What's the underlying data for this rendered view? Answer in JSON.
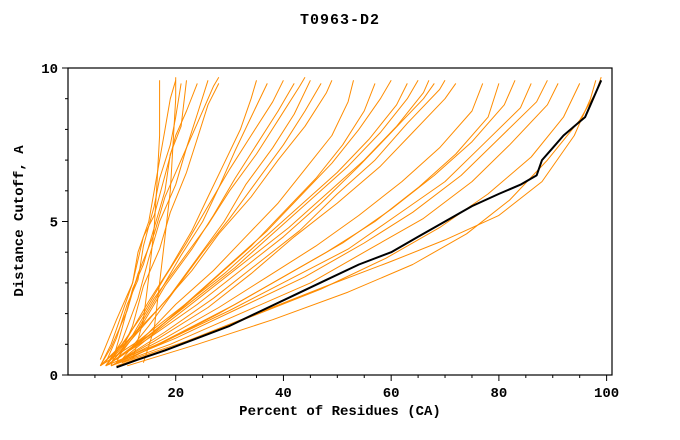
{
  "chart_data": {
    "type": "line",
    "title": "T0963-D2",
    "xlabel": "Percent of Residues (CA)",
    "ylabel": "Distance Cutoff, A",
    "xlim": [
      0,
      101
    ],
    "ylim": [
      0,
      10
    ],
    "x_ticks": [
      20,
      40,
      60,
      80,
      100
    ],
    "x_minor_ticks": [
      5,
      10,
      15,
      25,
      30,
      35,
      45,
      50,
      55,
      65,
      70,
      75,
      85,
      90,
      95
    ],
    "y_ticks": [
      0,
      5,
      10
    ],
    "y_minor_ticks": [
      1,
      2,
      3,
      4,
      6,
      7,
      8,
      9
    ],
    "grid": false,
    "legend": "none",
    "colors": {
      "models": "#ff8c00",
      "reference": "#000000",
      "axis": "#000000",
      "background": "#ffffff"
    },
    "orange_series": [
      [
        [
          6,
          0.3
        ],
        [
          8,
          1
        ],
        [
          10,
          2
        ],
        [
          12,
          3
        ],
        [
          13,
          4
        ],
        [
          15,
          5
        ],
        [
          16,
          6
        ],
        [
          17,
          7
        ],
        [
          18,
          8
        ],
        [
          19,
          9
        ],
        [
          20,
          9.6
        ]
      ],
      [
        [
          7,
          0.4
        ],
        [
          9,
          1.2
        ],
        [
          11,
          2.3
        ],
        [
          13,
          3.1
        ],
        [
          14,
          4.2
        ],
        [
          16,
          5.5
        ],
        [
          17,
          6.4
        ],
        [
          19,
          7.5
        ],
        [
          20,
          8.4
        ],
        [
          21,
          9.5
        ]
      ],
      [
        [
          8,
          0.3
        ],
        [
          10,
          1.5
        ],
        [
          12,
          2.8
        ],
        [
          14,
          3.6
        ],
        [
          16,
          4.8
        ],
        [
          18,
          6
        ],
        [
          19,
          7.2
        ],
        [
          21,
          8.1
        ],
        [
          22,
          9.6
        ]
      ],
      [
        [
          6,
          0.5
        ],
        [
          9,
          1.8
        ],
        [
          12,
          3
        ],
        [
          14,
          4.5
        ],
        [
          16,
          5.2
        ],
        [
          18,
          6.5
        ],
        [
          20,
          7.8
        ],
        [
          22,
          8.6
        ],
        [
          24,
          9.5
        ]
      ],
      [
        [
          7,
          0.3
        ],
        [
          10,
          1.1
        ],
        [
          13,
          2.5
        ],
        [
          15,
          3.8
        ],
        [
          17,
          5
        ],
        [
          20,
          6.2
        ],
        [
          22,
          7.4
        ],
        [
          24,
          8.5
        ],
        [
          26,
          9.6
        ]
      ],
      [
        [
          9,
          0.4
        ],
        [
          12,
          1.6
        ],
        [
          14,
          2.9
        ],
        [
          17,
          4.1
        ],
        [
          19,
          5.3
        ],
        [
          22,
          6.6
        ],
        [
          24,
          7.7
        ],
        [
          26,
          8.8
        ],
        [
          28,
          9.5
        ]
      ],
      [
        [
          6,
          0.3
        ],
        [
          8,
          0.9
        ],
        [
          11,
          2.1
        ],
        [
          13,
          3.3
        ],
        [
          16,
          4.6
        ],
        [
          18,
          5.8
        ],
        [
          21,
          7
        ],
        [
          24,
          8.2
        ],
        [
          27,
          9.4
        ],
        [
          28,
          9.7
        ]
      ],
      [
        [
          14,
          0.4
        ],
        [
          16,
          1.5
        ],
        [
          17,
          3
        ],
        [
          18,
          4.5
        ],
        [
          19,
          6
        ],
        [
          19.5,
          7.5
        ],
        [
          20,
          9
        ],
        [
          20,
          9.7
        ]
      ],
      [
        [
          12,
          0.5
        ],
        [
          14,
          1.8
        ],
        [
          15,
          3.2
        ],
        [
          16,
          4.8
        ],
        [
          16.5,
          6.2
        ],
        [
          17,
          7.8
        ],
        [
          17,
          9.6
        ]
      ],
      [
        [
          7,
          0.3
        ],
        [
          11,
          1.2
        ],
        [
          15,
          2.4
        ],
        [
          19,
          3.5
        ],
        [
          23,
          4.7
        ],
        [
          26,
          5.8
        ],
        [
          29,
          6.9
        ],
        [
          32,
          8
        ],
        [
          34,
          9
        ],
        [
          35,
          9.6
        ]
      ],
      [
        [
          8,
          0.4
        ],
        [
          13,
          1.5
        ],
        [
          17,
          2.7
        ],
        [
          21,
          3.9
        ],
        [
          25,
          5
        ],
        [
          28,
          6.1
        ],
        [
          31,
          7.3
        ],
        [
          34,
          8.4
        ],
        [
          37,
          9.5
        ]
      ],
      [
        [
          6,
          0.3
        ],
        [
          10,
          1
        ],
        [
          14,
          2
        ],
        [
          18,
          3.2
        ],
        [
          22,
          4.3
        ],
        [
          26,
          5.5
        ],
        [
          30,
          6.7
        ],
        [
          34,
          7.8
        ],
        [
          38,
          8.9
        ],
        [
          40,
          9.6
        ]
      ],
      [
        [
          9,
          0.5
        ],
        [
          14,
          1.7
        ],
        [
          18,
          2.9
        ],
        [
          23,
          4.1
        ],
        [
          27,
          5.2
        ],
        [
          31,
          6.4
        ],
        [
          35,
          7.5
        ],
        [
          39,
          8.6
        ],
        [
          42,
          9.5
        ]
      ],
      [
        [
          7,
          0.3
        ],
        [
          12,
          1.3
        ],
        [
          16,
          2.5
        ],
        [
          21,
          3.7
        ],
        [
          26,
          4.9
        ],
        [
          30,
          6
        ],
        [
          35,
          7.2
        ],
        [
          39,
          8.3
        ],
        [
          43,
          9.4
        ],
        [
          44,
          9.7
        ]
      ],
      [
        [
          8,
          0.4
        ],
        [
          13,
          1.4
        ],
        [
          19,
          2.6
        ],
        [
          24,
          3.8
        ],
        [
          29,
          5
        ],
        [
          33,
          6.2
        ],
        [
          38,
          7.4
        ],
        [
          42,
          8.5
        ],
        [
          45,
          9.6
        ]
      ],
      [
        [
          10,
          0.5
        ],
        [
          15,
          1.6
        ],
        [
          20,
          2.8
        ],
        [
          25,
          4
        ],
        [
          30,
          5.1
        ],
        [
          35,
          6.3
        ],
        [
          40,
          7.5
        ],
        [
          44,
          8.6
        ],
        [
          47,
          9.5
        ]
      ],
      [
        [
          6,
          0.3
        ],
        [
          11,
          1.1
        ],
        [
          17,
          2.2
        ],
        [
          23,
          3.4
        ],
        [
          28,
          4.6
        ],
        [
          34,
          5.8
        ],
        [
          39,
          7
        ],
        [
          44,
          8.1
        ],
        [
          48,
          9.2
        ],
        [
          49,
          9.6
        ]
      ],
      [
        [
          8,
          0.4
        ],
        [
          14,
          1.2
        ],
        [
          20,
          2.3
        ],
        [
          27,
          3.4
        ],
        [
          33,
          4.5
        ],
        [
          39,
          5.6
        ],
        [
          44,
          6.7
        ],
        [
          49,
          7.8
        ],
        [
          52,
          8.9
        ],
        [
          53,
          9.6
        ]
      ],
      [
        [
          7,
          0.3
        ],
        [
          13,
          1
        ],
        [
          20,
          2
        ],
        [
          27,
          3.1
        ],
        [
          34,
          4.2
        ],
        [
          40,
          5.3
        ],
        [
          46,
          6.4
        ],
        [
          51,
          7.5
        ],
        [
          55,
          8.6
        ],
        [
          57,
          9.5
        ]
      ],
      [
        [
          9,
          0.5
        ],
        [
          16,
          1.4
        ],
        [
          23,
          2.5
        ],
        [
          30,
          3.6
        ],
        [
          37,
          4.7
        ],
        [
          43,
          5.8
        ],
        [
          49,
          6.9
        ],
        [
          54,
          8
        ],
        [
          58,
          9
        ],
        [
          60,
          9.6
        ]
      ],
      [
        [
          6,
          0.3
        ],
        [
          13,
          1.1
        ],
        [
          21,
          2.2
        ],
        [
          29,
          3.3
        ],
        [
          36,
          4.4
        ],
        [
          43,
          5.5
        ],
        [
          50,
          6.6
        ],
        [
          56,
          7.7
        ],
        [
          61,
          8.8
        ],
        [
          63,
          9.5
        ]
      ],
      [
        [
          8,
          0.4
        ],
        [
          15,
          1.3
        ],
        [
          23,
          2.4
        ],
        [
          31,
          3.5
        ],
        [
          38,
          4.6
        ],
        [
          45,
          5.7
        ],
        [
          52,
          6.8
        ],
        [
          58,
          7.9
        ],
        [
          63,
          9
        ],
        [
          65,
          9.6
        ]
      ],
      [
        [
          10,
          0.5
        ],
        [
          17,
          1.5
        ],
        [
          25,
          2.6
        ],
        [
          33,
          3.7
        ],
        [
          41,
          4.8
        ],
        [
          48,
          5.9
        ],
        [
          55,
          7
        ],
        [
          61,
          8.1
        ],
        [
          66,
          9.2
        ],
        [
          67,
          9.6
        ]
      ],
      [
        [
          7,
          0.3
        ],
        [
          15,
          1.2
        ],
        [
          24,
          2.3
        ],
        [
          32,
          3.4
        ],
        [
          40,
          4.5
        ],
        [
          47,
          5.6
        ],
        [
          54,
          6.8
        ],
        [
          60,
          7.9
        ],
        [
          66,
          9
        ],
        [
          68,
          9.5
        ]
      ],
      [
        [
          9,
          0.4
        ],
        [
          18,
          1.4
        ],
        [
          27,
          2.5
        ],
        [
          35,
          3.6
        ],
        [
          43,
          4.7
        ],
        [
          50,
          5.9
        ],
        [
          57,
          7
        ],
        [
          63,
          8.2
        ],
        [
          69,
          9.3
        ],
        [
          70,
          9.6
        ]
      ],
      [
        [
          8,
          0.3
        ],
        [
          16,
          1.1
        ],
        [
          26,
          2.2
        ],
        [
          34,
          3.3
        ],
        [
          42,
          4.5
        ],
        [
          50,
          5.6
        ],
        [
          58,
          6.8
        ],
        [
          64,
          7.9
        ],
        [
          70,
          9
        ],
        [
          72,
          9.5
        ]
      ],
      [
        [
          9,
          0.4
        ],
        [
          18,
          1.2
        ],
        [
          28,
          2.2
        ],
        [
          37,
          3.2
        ],
        [
          46,
          4.2
        ],
        [
          54,
          5.2
        ],
        [
          62,
          6.3
        ],
        [
          69,
          7.4
        ],
        [
          75,
          8.6
        ],
        [
          77,
          9.5
        ]
      ],
      [
        [
          8,
          0.3
        ],
        [
          17,
          1
        ],
        [
          28,
          2
        ],
        [
          38,
          3
        ],
        [
          48,
          4
        ],
        [
          57,
          5
        ],
        [
          65,
          6.1
        ],
        [
          72,
          7.2
        ],
        [
          78,
          8.4
        ],
        [
          80,
          9.5
        ]
      ],
      [
        [
          10,
          0.4
        ],
        [
          20,
          1.3
        ],
        [
          31,
          2.3
        ],
        [
          41,
          3.3
        ],
        [
          51,
          4.3
        ],
        [
          60,
          5.4
        ],
        [
          68,
          6.5
        ],
        [
          75,
          7.6
        ],
        [
          81,
          8.8
        ],
        [
          83,
          9.6
        ]
      ],
      [
        [
          7,
          0.3
        ],
        [
          18,
          1.1
        ],
        [
          30,
          2.1
        ],
        [
          41,
          3.1
        ],
        [
          52,
          4.1
        ],
        [
          61,
          5.2
        ],
        [
          70,
          6.3
        ],
        [
          77,
          7.5
        ],
        [
          84,
          8.7
        ],
        [
          86,
          9.5
        ]
      ],
      [
        [
          9,
          0.4
        ],
        [
          20,
          1.2
        ],
        [
          32,
          2.2
        ],
        [
          44,
          3.2
        ],
        [
          55,
          4.3
        ],
        [
          64,
          5.3
        ],
        [
          73,
          6.5
        ],
        [
          80,
          7.7
        ],
        [
          87,
          8.9
        ],
        [
          89,
          9.6
        ]
      ],
      [
        [
          8,
          0.3
        ],
        [
          19,
          1
        ],
        [
          32,
          2
        ],
        [
          45,
          3
        ],
        [
          56,
          4.1
        ],
        [
          66,
          5.1
        ],
        [
          75,
          6.3
        ],
        [
          82,
          7.5
        ],
        [
          89,
          8.8
        ],
        [
          91,
          9.5
        ]
      ],
      [
        [
          10,
          0.4
        ],
        [
          22,
          1.1
        ],
        [
          35,
          2
        ],
        [
          48,
          2.9
        ],
        [
          60,
          3.7
        ],
        [
          70,
          4.4
        ],
        [
          80,
          5.2
        ],
        [
          88,
          6.3
        ],
        [
          94,
          7.8
        ],
        [
          97,
          9
        ],
        [
          98,
          9.6
        ]
      ],
      [
        [
          9,
          0.3
        ],
        [
          21,
          1
        ],
        [
          34,
          1.9
        ],
        [
          47,
          2.8
        ],
        [
          59,
          3.8
        ],
        [
          69,
          4.8
        ],
        [
          78,
          5.9
        ],
        [
          86,
          7.1
        ],
        [
          92,
          8.4
        ],
        [
          95,
          9.5
        ]
      ],
      [
        [
          11,
          0.3
        ],
        [
          24,
          1
        ],
        [
          38,
          1.8
        ],
        [
          52,
          2.7
        ],
        [
          64,
          3.6
        ],
        [
          74,
          4.6
        ],
        [
          82,
          5.7
        ],
        [
          89,
          7
        ],
        [
          95,
          8.3
        ],
        [
          98,
          9.2
        ],
        [
          99,
          9.7
        ]
      ]
    ],
    "reference_series": [
      [
        9,
        0.25
      ],
      [
        13,
        0.5
      ],
      [
        18,
        0.8
      ],
      [
        24,
        1.2
      ],
      [
        30,
        1.6
      ],
      [
        36,
        2.1
      ],
      [
        42,
        2.6
      ],
      [
        48,
        3.1
      ],
      [
        54,
        3.6
      ],
      [
        60,
        4
      ],
      [
        65,
        4.5
      ],
      [
        70,
        5
      ],
      [
        75,
        5.5
      ],
      [
        80,
        5.9
      ],
      [
        84,
        6.2
      ],
      [
        87,
        6.5
      ],
      [
        88,
        7
      ],
      [
        90,
        7.4
      ],
      [
        92,
        7.8
      ],
      [
        94,
        8.1
      ],
      [
        96,
        8.4
      ],
      [
        97,
        8.8
      ],
      [
        98,
        9.2
      ],
      [
        99,
        9.6
      ]
    ]
  }
}
